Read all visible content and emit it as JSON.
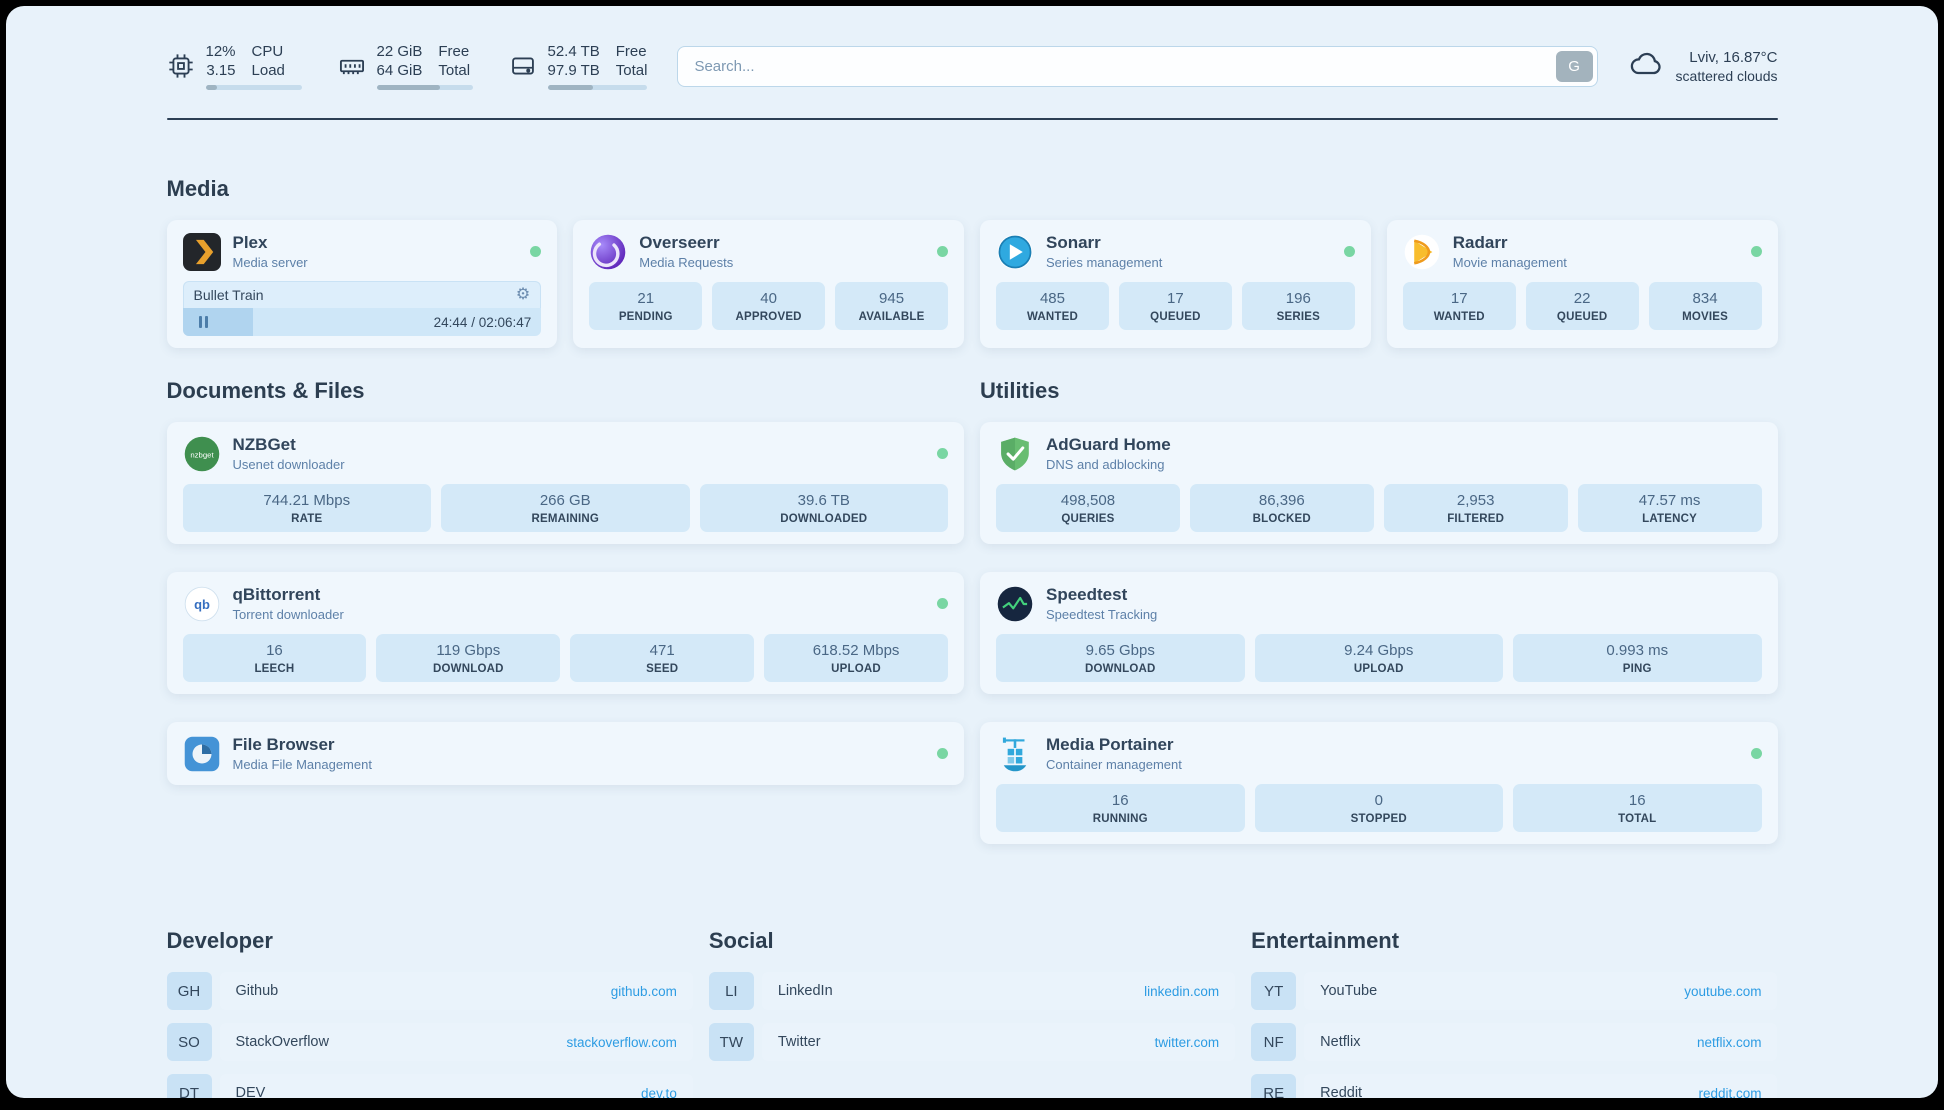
{
  "theme": {
    "page_bg": "#e8f2fa",
    "card_bg": "#f0f7fd",
    "stat_bg": "#d4e9f8",
    "accent_link": "#2d9ce3",
    "status_online": "#79d6a3",
    "plex_orange": "#e8a02c",
    "adguard_green": "#68bd71"
  },
  "icons": {
    "gear": "⚙"
  },
  "topbar": {
    "cpu": {
      "value": "12%",
      "load": "3.15",
      "label_top": "CPU",
      "label_bottom": "Load",
      "progress_pct": 12
    },
    "ram": {
      "free": "22 GiB",
      "total": "64 GiB",
      "label_top": "Free",
      "label_bottom": "Total",
      "progress_pct": 66
    },
    "disk": {
      "free": "52.4 TB",
      "total": "97.9 TB",
      "label_top": "Free",
      "label_bottom": "Total",
      "progress_pct": 46
    },
    "search": {
      "placeholder": "Search...",
      "provider_button": "G"
    },
    "weather": {
      "location": "Lviv, 16.87°C",
      "condition": "scattered clouds"
    }
  },
  "media": {
    "title": "Media",
    "plex": {
      "name": "Plex",
      "subtitle": "Media server",
      "now_playing": "Bullet Train",
      "elapsed_total": "24:44 / 02:06:47",
      "progress_pct": 19.6
    },
    "overseerr": {
      "name": "Overseerr",
      "subtitle": "Media Requests",
      "stats": [
        {
          "value": "21",
          "label": "PENDING"
        },
        {
          "value": "40",
          "label": "APPROVED"
        },
        {
          "value": "945",
          "label": "AVAILABLE"
        }
      ]
    },
    "sonarr": {
      "name": "Sonarr",
      "subtitle": "Series management",
      "stats": [
        {
          "value": "485",
          "label": "WANTED"
        },
        {
          "value": "17",
          "label": "QUEUED"
        },
        {
          "value": "196",
          "label": "SERIES"
        }
      ]
    },
    "radarr": {
      "name": "Radarr",
      "subtitle": "Movie management",
      "stats": [
        {
          "value": "17",
          "label": "WANTED"
        },
        {
          "value": "22",
          "label": "QUEUED"
        },
        {
          "value": "834",
          "label": "MOVIES"
        }
      ]
    }
  },
  "documents": {
    "title": "Documents & Files",
    "nzbget": {
      "name": "NZBGet",
      "subtitle": "Usenet downloader",
      "icon_text": "nzbget",
      "stats": [
        {
          "value": "744.21 Mbps",
          "label": "RATE"
        },
        {
          "value": "266 GB",
          "label": "REMAINING"
        },
        {
          "value": "39.6 TB",
          "label": "DOWNLOADED"
        }
      ]
    },
    "qbittorrent": {
      "name": "qBittorrent",
      "subtitle": "Torrent downloader",
      "icon_text": "qb",
      "stats": [
        {
          "value": "16",
          "label": "LEECH"
        },
        {
          "value": "119 Gbps",
          "label": "DOWNLOAD"
        },
        {
          "value": "471",
          "label": "SEED"
        },
        {
          "value": "618.52 Mbps",
          "label": "UPLOAD"
        }
      ]
    },
    "filebrowser": {
      "name": "File Browser",
      "subtitle": "Media File Management"
    }
  },
  "utilities": {
    "title": "Utilities",
    "adguard": {
      "name": "AdGuard Home",
      "subtitle": "DNS and adblocking",
      "stats": [
        {
          "value": "498,508",
          "label": "QUERIES"
        },
        {
          "value": "86,396",
          "label": "BLOCKED"
        },
        {
          "value": "2,953",
          "label": "FILTERED"
        },
        {
          "value": "47.57 ms",
          "label": "LATENCY"
        }
      ]
    },
    "speedtest": {
      "name": "Speedtest",
      "subtitle": "Speedtest Tracking",
      "stats": [
        {
          "value": "9.65 Gbps",
          "label": "DOWNLOAD"
        },
        {
          "value": "9.24 Gbps",
          "label": "UPLOAD"
        },
        {
          "value": "0.993 ms",
          "label": "PING"
        }
      ]
    },
    "portainer": {
      "name": "Media Portainer",
      "subtitle": "Container management",
      "stats": [
        {
          "value": "16",
          "label": "RUNNING"
        },
        {
          "value": "0",
          "label": "STOPPED"
        },
        {
          "value": "16",
          "label": "TOTAL"
        }
      ]
    }
  },
  "bookmarks": {
    "developer": {
      "title": "Developer",
      "items": [
        {
          "abbr": "GH",
          "name": "Github",
          "link": "github.com"
        },
        {
          "abbr": "SO",
          "name": "StackOverflow",
          "link": "stackoverflow.com"
        },
        {
          "abbr": "DT",
          "name": "DEV",
          "link": "dev.to"
        }
      ]
    },
    "social": {
      "title": "Social",
      "items": [
        {
          "abbr": "LI",
          "name": "LinkedIn",
          "link": "linkedin.com"
        },
        {
          "abbr": "TW",
          "name": "Twitter",
          "link": "twitter.com"
        }
      ]
    },
    "entertainment": {
      "title": "Entertainment",
      "items": [
        {
          "abbr": "YT",
          "name": "YouTube",
          "link": "youtube.com"
        },
        {
          "abbr": "NF",
          "name": "Netflix",
          "link": "netflix.com"
        },
        {
          "abbr": "RE",
          "name": "Reddit",
          "link": "reddit.com"
        }
      ]
    }
  }
}
